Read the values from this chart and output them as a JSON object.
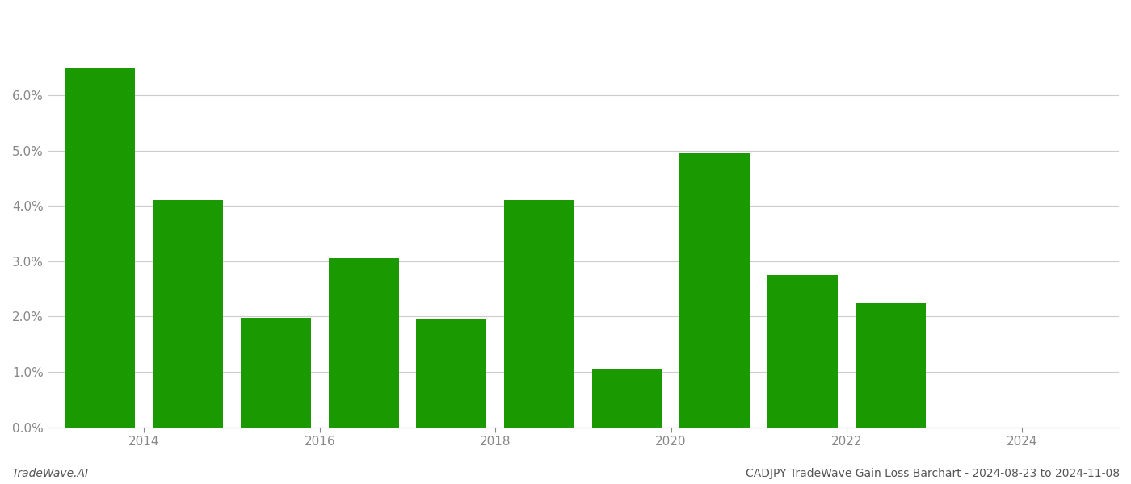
{
  "years": [
    2013,
    2014,
    2015,
    2016,
    2017,
    2018,
    2019,
    2020,
    2021,
    2022,
    2023
  ],
  "values": [
    0.065,
    0.041,
    0.0198,
    0.0305,
    0.0195,
    0.041,
    0.0105,
    0.0495,
    0.0275,
    0.0225,
    0.0
  ],
  "bar_color": "#1a9a00",
  "background_color": "#ffffff",
  "grid_color": "#cccccc",
  "axis_color": "#aaaaaa",
  "tick_color": "#888888",
  "ylim": [
    0,
    0.075
  ],
  "ytick_positions": [
    0.0,
    0.01,
    0.02,
    0.03,
    0.04,
    0.05,
    0.06
  ],
  "xtick_positions": [
    2013.5,
    2015.5,
    2017.5,
    2019.5,
    2021.5,
    2023.5
  ],
  "xtick_labels": [
    "2014",
    "2016",
    "2018",
    "2020",
    "2022",
    "2024"
  ],
  "footer_left": "TradeWave.AI",
  "footer_right": "CADJPY TradeWave Gain Loss Barchart - 2024-08-23 to 2024-11-08",
  "bar_width": 0.8
}
